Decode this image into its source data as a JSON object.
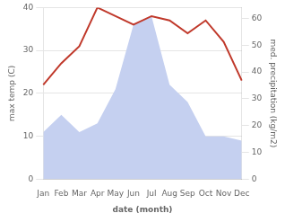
{
  "chart_data": {
    "type": "line",
    "xlabel": "date (month)",
    "ylabel": "max temp (C)",
    "y2label": "med. precipitation (kg/m2)",
    "categories": [
      "Jan",
      "Feb",
      "Mar",
      "Apr",
      "May",
      "Jun",
      "Jul",
      "Aug",
      "Sep",
      "Oct",
      "Nov",
      "Dec"
    ],
    "series": [
      {
        "type": "area",
        "color": "#c5d0f0",
        "axis": "y2",
        "values": [
          17.6,
          24,
          17.6,
          20.8,
          33.6,
          57.6,
          60.8,
          35.2,
          28.8,
          16,
          16,
          14.4
        ]
      },
      {
        "type": "line",
        "color": "#c0392b",
        "values": [
          22,
          27,
          31,
          40,
          38,
          36,
          38,
          37,
          34,
          37,
          32,
          23
        ]
      }
    ],
    "ylim": [
      0,
      40
    ],
    "yticks": [
      0,
      10,
      20,
      30,
      40
    ],
    "y2lim": [
      0,
      64
    ],
    "y2ticks": [
      0,
      10,
      20,
      30,
      40,
      50,
      60
    ],
    "grid": true
  }
}
